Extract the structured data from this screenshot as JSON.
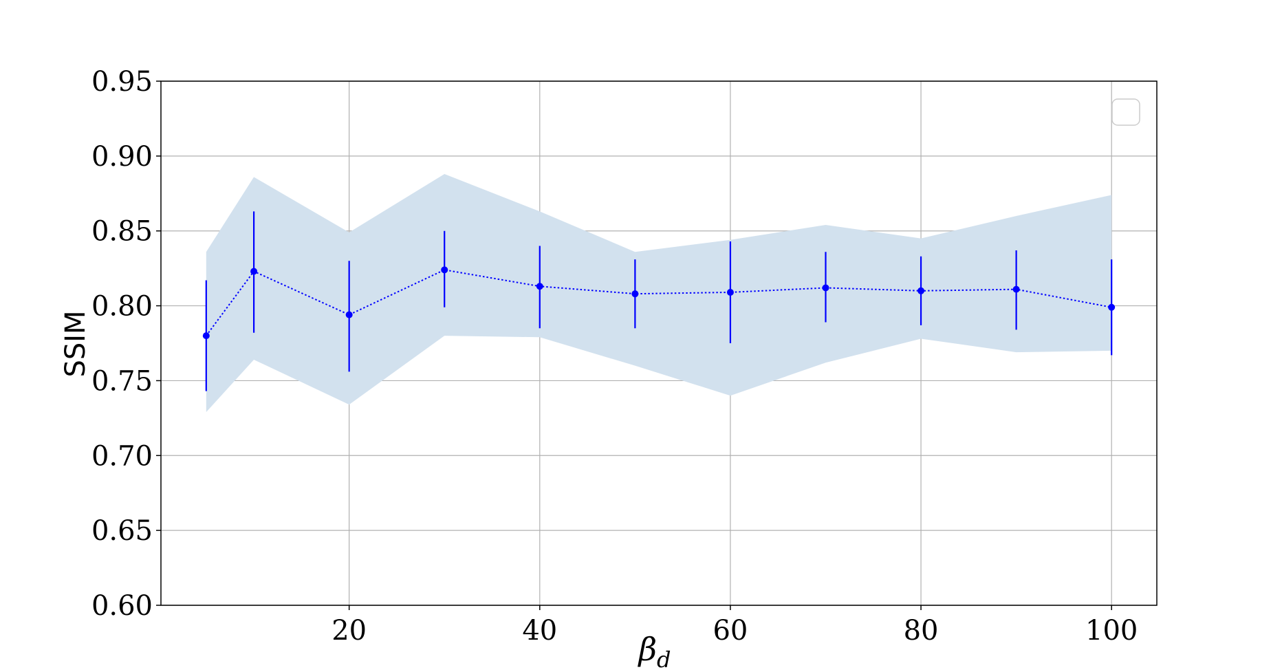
{
  "chart_data": {
    "type": "line",
    "title": "",
    "xlabel": "β",
    "xlabel_subscript": "d",
    "ylabel": "SSIM",
    "xlim": [
      0.25,
      104.75
    ],
    "ylim": [
      0.6,
      0.95
    ],
    "x_ticks": [
      20,
      40,
      60,
      80,
      100
    ],
    "x_tick_labels": [
      "20",
      "40",
      "60",
      "80",
      "100"
    ],
    "y_ticks": [
      0.6,
      0.65,
      0.7,
      0.75,
      0.8,
      0.85,
      0.9,
      0.95
    ],
    "y_tick_labels": [
      "0.60",
      "0.65",
      "0.70",
      "0.75",
      "0.80",
      "0.85",
      "0.90",
      "0.95"
    ],
    "grid": true,
    "legend": {
      "placement": "top-right",
      "entries": []
    },
    "series": [
      {
        "x": [
          5,
          10,
          20,
          30,
          40,
          50,
          60,
          70,
          80,
          90,
          100
        ],
        "y": [
          0.78,
          0.823,
          0.794,
          0.824,
          0.813,
          0.808,
          0.809,
          0.812,
          0.81,
          0.811,
          0.799
        ],
        "yerr_low": [
          0.743,
          0.782,
          0.756,
          0.799,
          0.785,
          0.785,
          0.775,
          0.789,
          0.787,
          0.784,
          0.767
        ],
        "yerr_high": [
          0.817,
          0.863,
          0.83,
          0.85,
          0.84,
          0.831,
          0.843,
          0.836,
          0.833,
          0.837,
          0.831
        ],
        "band_low": [
          0.729,
          0.764,
          0.734,
          0.78,
          0.779,
          0.76,
          0.74,
          0.762,
          0.778,
          0.769,
          0.77
        ],
        "band_high": [
          0.836,
          0.886,
          0.849,
          0.888,
          0.863,
          0.836,
          0.844,
          0.854,
          0.845,
          0.86,
          0.874
        ],
        "line_style": "dotted",
        "color": "#0000ff"
      }
    ],
    "colors": {
      "series": "#0000ff",
      "band": "#d2e1ee",
      "grid": "#b0b0b0",
      "axes": "#000000",
      "legend_border": "#cccccc"
    }
  }
}
